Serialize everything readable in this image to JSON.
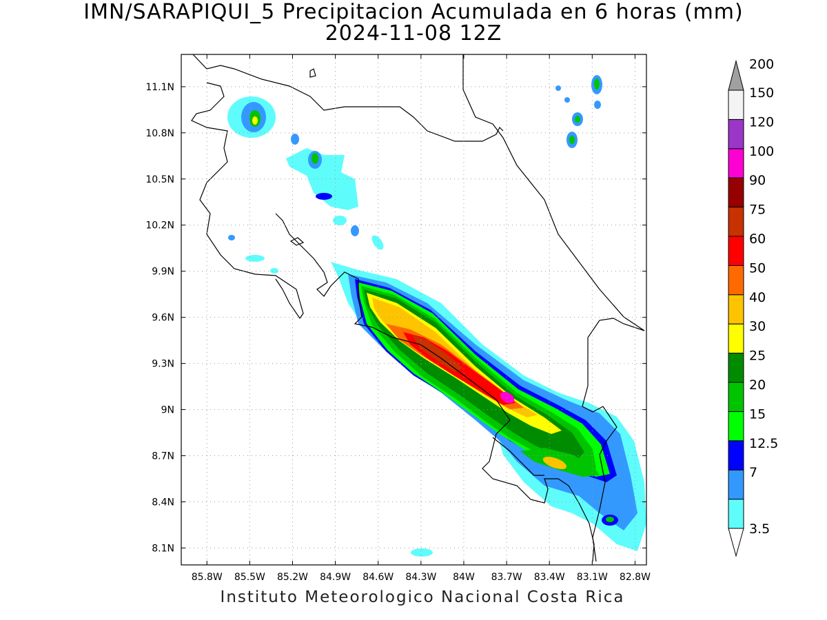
{
  "title": {
    "line1": "IMN/SARAPIQUI_5 Precipitacion Acumulada en 6 horas (mm)",
    "line2": "2024-11-08 12Z"
  },
  "credit": "Instituto Meteorologico Nacional Costa Rica",
  "map": {
    "x_ticks": [
      {
        "lon": -85.8,
        "label": "85.8W"
      },
      {
        "lon": -85.5,
        "label": "85.5W"
      },
      {
        "lon": -85.2,
        "label": "85.2W"
      },
      {
        "lon": -84.9,
        "label": "84.9W"
      },
      {
        "lon": -84.6,
        "label": "84.6W"
      },
      {
        "lon": -84.3,
        "label": "84.3W"
      },
      {
        "lon": -84.0,
        "label": "84W"
      },
      {
        "lon": -83.7,
        "label": "83.7W"
      },
      {
        "lon": -83.4,
        "label": "83.4W"
      },
      {
        "lon": -83.1,
        "label": "83.1W"
      },
      {
        "lon": -82.8,
        "label": "82.8W"
      }
    ],
    "y_ticks": [
      {
        "lat": 11.1,
        "label": "11.1N"
      },
      {
        "lat": 10.8,
        "label": "10.8N"
      },
      {
        "lat": 10.5,
        "label": "10.5N"
      },
      {
        "lat": 10.2,
        "label": "10.2N"
      },
      {
        "lat": 9.9,
        "label": "9.9N"
      },
      {
        "lat": 9.6,
        "label": "9.6N"
      },
      {
        "lat": 9.3,
        "label": "9.3N"
      },
      {
        "lat": 9.0,
        "label": "9N"
      },
      {
        "lat": 8.7,
        "label": "8.7N"
      },
      {
        "lat": 8.4,
        "label": "8.4N"
      },
      {
        "lat": 8.1,
        "label": "8.1N"
      }
    ],
    "lon_range": [
      -85.98,
      -82.72
    ],
    "lat_range": [
      7.99,
      11.31
    ]
  },
  "colorbar": {
    "bins": [
      {
        "label": "3.5",
        "color": "#5ffcfc"
      },
      {
        "label": "7",
        "color": "#3399ff"
      },
      {
        "label": "12.5",
        "color": "#0000ff"
      },
      {
        "label": "15",
        "color": "#00ff00"
      },
      {
        "label": "20",
        "color": "#00c400"
      },
      {
        "label": "25",
        "color": "#008c00"
      },
      {
        "label": "30",
        "color": "#ffff00"
      },
      {
        "label": "40",
        "color": "#ffc400"
      },
      {
        "label": "50",
        "color": "#ff6a00"
      },
      {
        "label": "60",
        "color": "#ff0000"
      },
      {
        "label": "75",
        "color": "#c83200"
      },
      {
        "label": "90",
        "color": "#960000"
      },
      {
        "label": "100",
        "color": "#ff00d4"
      },
      {
        "label": "120",
        "color": "#9b37c8"
      },
      {
        "label": "150",
        "color": "#f4f4f4"
      },
      {
        "label": "200",
        "color": "#a0a0a0"
      }
    ]
  }
}
